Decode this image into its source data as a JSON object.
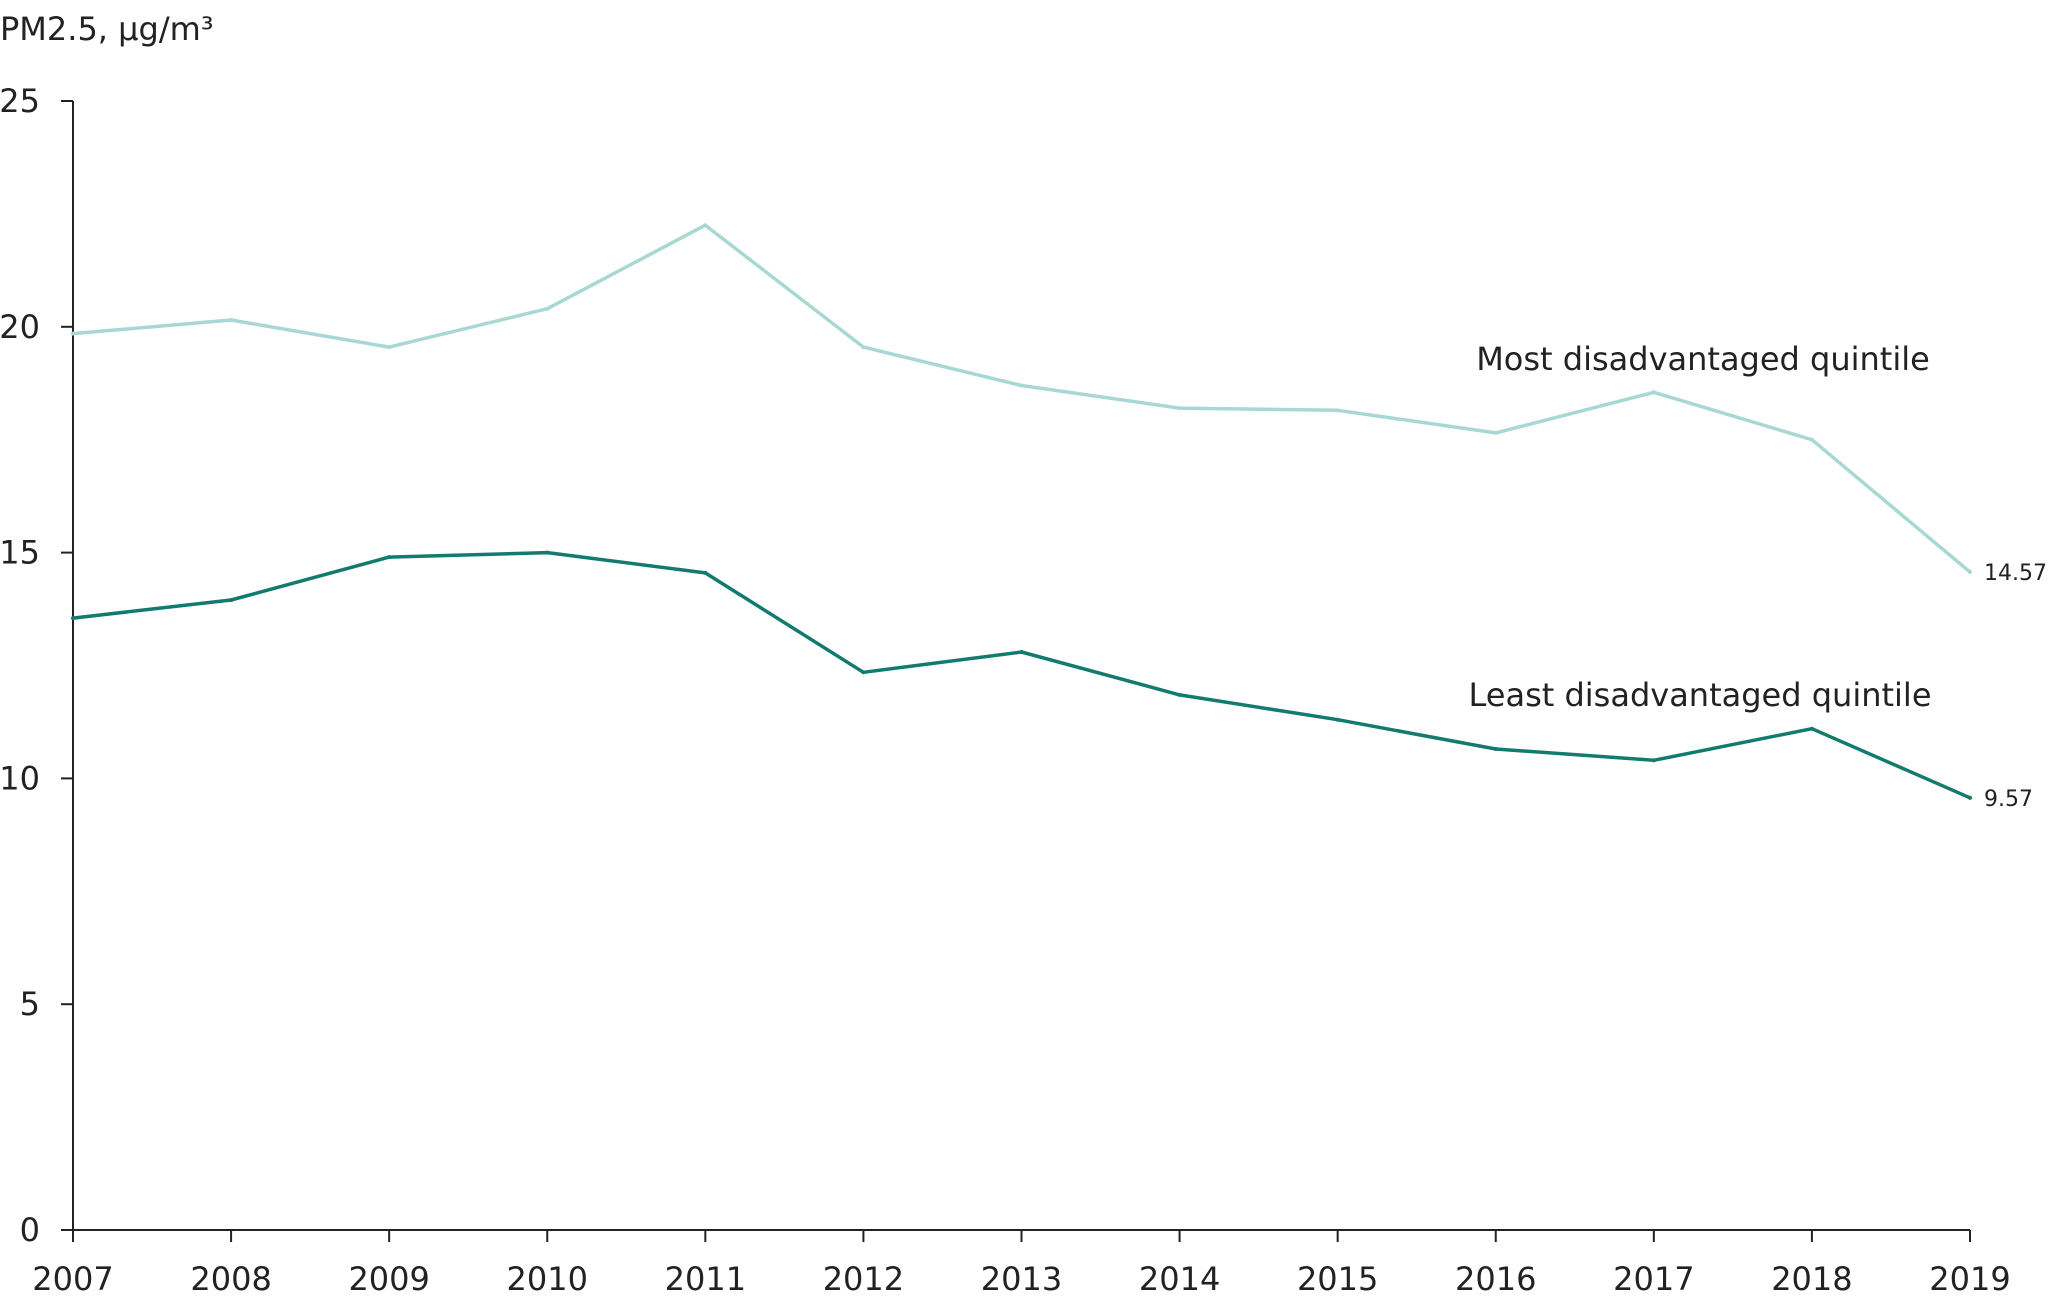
{
  "chart_data": {
    "type": "line",
    "ylabel": "PM2.5, μg/m³",
    "xlabel": "",
    "title": "",
    "ylim": [
      0,
      25
    ],
    "yticks": [
      0,
      5,
      10,
      15,
      20,
      25
    ],
    "x": [
      "2007",
      "2008",
      "2009",
      "2010",
      "2011",
      "2012",
      "2013",
      "2014",
      "2015",
      "2016",
      "2017",
      "2018",
      "2019"
    ],
    "series": [
      {
        "name": "Most disadvantaged quintile",
        "color": "#a8d8d3",
        "values": [
          19.85,
          20.15,
          19.55,
          20.4,
          22.25,
          19.55,
          18.7,
          18.2,
          18.15,
          17.65,
          18.55,
          17.5,
          14.57
        ],
        "end_label": "14.57"
      },
      {
        "name": "Least disadvantaged quintile",
        "color": "#127b6e",
        "values": [
          13.55,
          13.95,
          14.9,
          15.0,
          14.55,
          12.35,
          12.8,
          11.85,
          11.3,
          10.65,
          10.4,
          11.1,
          9.57
        ],
        "end_label": "9.57"
      }
    ],
    "grid": false,
    "legend": "inline-labels"
  }
}
